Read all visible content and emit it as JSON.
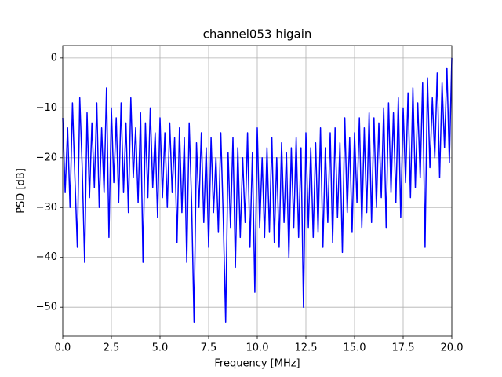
{
  "chart_data": {
    "type": "line",
    "title": "channel053 higain",
    "xlabel": "Frequency [MHz]",
    "ylabel": "PSD [dB]",
    "grid": true,
    "xlim": [
      0,
      20
    ],
    "ylim": [
      -55.8,
      2.5
    ],
    "xticks": [
      {
        "value": 0,
        "label": "0.0"
      },
      {
        "value": 2.5,
        "label": "2.5"
      },
      {
        "value": 5,
        "label": "5.0"
      },
      {
        "value": 7.5,
        "label": "7.5"
      },
      {
        "value": 10,
        "label": "10.0"
      },
      {
        "value": 12.5,
        "label": "12.5"
      },
      {
        "value": 15,
        "label": "15.0"
      },
      {
        "value": 17.5,
        "label": "17.5"
      },
      {
        "value": 20,
        "label": "20.0"
      }
    ],
    "yticks": [
      {
        "value": -50,
        "label": "−50"
      },
      {
        "value": -40,
        "label": "−40"
      },
      {
        "value": -30,
        "label": "−30"
      },
      {
        "value": -20,
        "label": "−20"
      },
      {
        "value": -10,
        "label": "−10"
      },
      0
    ],
    "series": [
      {
        "color": "#0000ff",
        "x": [
          0,
          0.125,
          0.25,
          0.375,
          0.5,
          0.625,
          0.75,
          0.875,
          1,
          1.125,
          1.25,
          1.375,
          1.5,
          1.625,
          1.75,
          1.875,
          2,
          2.125,
          2.25,
          2.375,
          2.5,
          2.625,
          2.75,
          2.875,
          3,
          3.125,
          3.25,
          3.375,
          3.5,
          3.625,
          3.75,
          3.875,
          4,
          4.125,
          4.25,
          4.375,
          4.5,
          4.625,
          4.75,
          4.875,
          5,
          5.125,
          5.25,
          5.375,
          5.5,
          5.625,
          5.75,
          5.875,
          6,
          6.125,
          6.25,
          6.375,
          6.5,
          6.625,
          6.75,
          6.875,
          7,
          7.125,
          7.25,
          7.375,
          7.5,
          7.625,
          7.75,
          7.875,
          8,
          8.125,
          8.25,
          8.375,
          8.5,
          8.625,
          8.75,
          8.875,
          9,
          9.125,
          9.25,
          9.375,
          9.5,
          9.625,
          9.75,
          9.875,
          10,
          10.125,
          10.25,
          10.375,
          10.5,
          10.625,
          10.75,
          10.875,
          11,
          11.125,
          11.25,
          11.375,
          11.5,
          11.625,
          11.75,
          11.875,
          12,
          12.125,
          12.25,
          12.375,
          12.5,
          12.625,
          12.75,
          12.875,
          13,
          13.125,
          13.25,
          13.375,
          13.5,
          13.625,
          13.75,
          13.875,
          14,
          14.125,
          14.25,
          14.375,
          14.5,
          14.625,
          14.75,
          14.875,
          15,
          15.125,
          15.25,
          15.375,
          15.5,
          15.625,
          15.75,
          15.875,
          16,
          16.125,
          16.25,
          16.375,
          16.5,
          16.625,
          16.75,
          16.875,
          17,
          17.125,
          17.25,
          17.375,
          17.5,
          17.625,
          17.75,
          17.875,
          18,
          18.125,
          18.25,
          18.375,
          18.5,
          18.625,
          18.75,
          18.875,
          19,
          19.125,
          19.25,
          19.375,
          19.5,
          19.625,
          19.75,
          19.875,
          20
        ],
        "values": [
          -12,
          -27,
          -14,
          -30,
          -9,
          -24,
          -38,
          -8,
          -22,
          -41,
          -11,
          -28,
          -13,
          -26,
          -9,
          -30,
          -14,
          -27,
          -6,
          -36,
          -10,
          -25,
          -12,
          -29,
          -9,
          -27,
          -13,
          -31,
          -8,
          -24,
          -14,
          -29,
          -11,
          -41,
          -13,
          -28,
          -10,
          -26,
          -15,
          -32,
          -12,
          -28,
          -15,
          -30,
          -13,
          -27,
          -16,
          -37,
          -14,
          -31,
          -16,
          -41,
          -13,
          -29,
          -53,
          -17,
          -30,
          -15,
          -33,
          -18,
          -38,
          -16,
          -31,
          -20,
          -35,
          -15,
          -32,
          -53,
          -19,
          -34,
          -16,
          -42,
          -18,
          -36,
          -20,
          -33,
          -15,
          -38,
          -19,
          -47,
          -14,
          -34,
          -20,
          -36,
          -18,
          -35,
          -16,
          -37,
          -20,
          -38,
          -17,
          -33,
          -19,
          -40,
          -18,
          -34,
          -16,
          -36,
          -18,
          -50,
          -15,
          -34,
          -18,
          -36,
          -17,
          -35,
          -14,
          -38,
          -18,
          -33,
          -15,
          -37,
          -14,
          -32,
          -17,
          -39,
          -12,
          -31,
          -16,
          -35,
          -15,
          -29,
          -12,
          -34,
          -14,
          -31,
          -11,
          -33,
          -12,
          -30,
          -13,
          -28,
          -10,
          -34,
          -9,
          -27,
          -11,
          -29,
          -8,
          -32,
          -10,
          -25,
          -7,
          -28,
          -6,
          -26,
          -9,
          -24,
          -5,
          -38,
          -4,
          -22,
          -8,
          -20,
          -3,
          -24,
          -5,
          -18,
          -2,
          -21,
          0
        ]
      }
    ]
  }
}
